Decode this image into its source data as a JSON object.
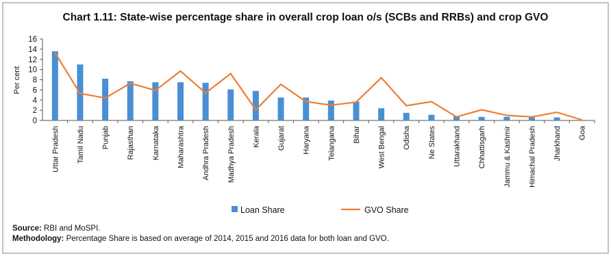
{
  "chart_data": {
    "type": "bar_line",
    "title": "Chart 1.11: State-wise percentage share in overall crop loan o/s (SCBs and RRBs) and crop GVO",
    "ylabel": "Per cent",
    "categories": [
      "Uttar Pradesh",
      "Tamil Nadu",
      "Punjab",
      "Rajasthan",
      "Karnataka",
      "Maharashtra",
      "Andhra Pradesh",
      "Madhya Pradesh",
      "Kerala",
      "Gujarat",
      "Haryana",
      "Telangana",
      "Bihar",
      "West Bengal",
      "Odisha",
      "Ne States",
      "Uttarakhand",
      "Chhattisgarh",
      "Jammu & Kashmir",
      "Himachal Pradesh",
      "Jharkhand",
      "Goa"
    ],
    "series": [
      {
        "name": "Loan Share",
        "type": "bar",
        "color": "#4a8fd4",
        "values": [
          13.6,
          11.0,
          8.2,
          7.7,
          7.5,
          7.5,
          7.4,
          6.1,
          5.8,
          4.5,
          4.5,
          3.9,
          3.7,
          2.4,
          1.5,
          1.1,
          0.8,
          0.7,
          0.7,
          0.6,
          0.6,
          0.1
        ]
      },
      {
        "name": "GVO Share",
        "type": "line",
        "color": "#ed7d31",
        "values": [
          13.3,
          5.3,
          4.4,
          7.3,
          5.9,
          9.7,
          5.4,
          9.2,
          2.1,
          7.1,
          3.7,
          3.0,
          3.6,
          8.4,
          2.9,
          3.7,
          0.7,
          2.1,
          1.0,
          0.7,
          1.6,
          0.1
        ]
      }
    ],
    "ylim": [
      0,
      16
    ],
    "yticks": [
      0,
      2,
      4,
      6,
      8,
      10,
      12,
      14,
      16
    ],
    "grid": false,
    "legend": "bottom",
    "source_label": "Source:",
    "source": "RBI and MoSPI.",
    "methodology_label": "Methodology:",
    "methodology": "Percentage Share is based on average of 2014, 2015 and 2016 data for both loan and GVO."
  }
}
